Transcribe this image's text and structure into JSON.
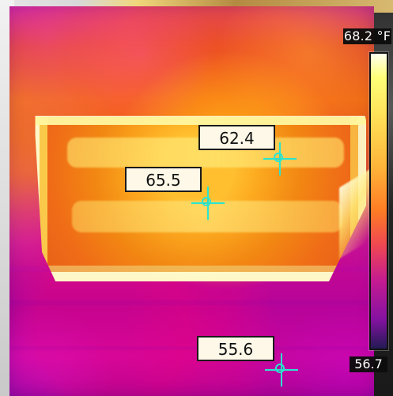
{
  "thermal": {
    "scale": {
      "max": "68.2 °F",
      "min": "56.7"
    },
    "markers": [
      {
        "value": "62.4"
      },
      {
        "value": "65.5"
      },
      {
        "value": "55.6"
      }
    ],
    "colors": {
      "crosshair": "#2be5d0",
      "label_bg": "#fdf8e8",
      "scale_bg": "#111111"
    }
  }
}
